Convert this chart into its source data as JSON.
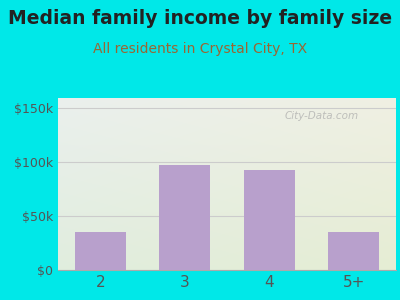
{
  "categories": [
    "2",
    "3",
    "4",
    "5+"
  ],
  "values": [
    35000,
    97000,
    93000,
    35000
  ],
  "bar_color": "#b8a0cc",
  "title": "Median family income by family size",
  "subtitle": "All residents in Crystal City, TX",
  "title_color": "#222222",
  "subtitle_color": "#996633",
  "outer_bg_color": "#00e8e8",
  "yticks": [
    0,
    50000,
    100000,
    150000
  ],
  "ytick_labels": [
    "$0",
    "$50k",
    "$100k",
    "$150k"
  ],
  "ylim": [
    0,
    160000
  ],
  "watermark": "City-Data.com",
  "title_fontsize": 13.5,
  "subtitle_fontsize": 10,
  "tick_label_color": "#555555",
  "grid_color": "#cccccc",
  "plot_bg_color_tl": "#ddeef5",
  "plot_bg_color_br": "#d8eedd"
}
